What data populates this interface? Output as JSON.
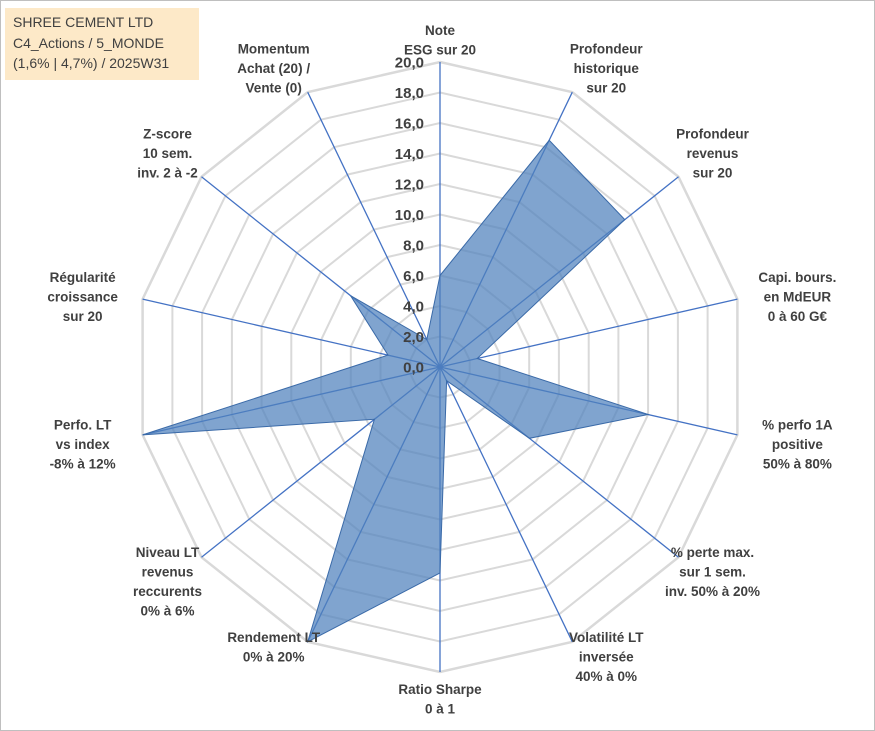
{
  "title_box": {
    "line1": "SHREE CEMENT LTD",
    "line2": "C4_Actions / 5_MONDE",
    "line3": "(1,6% | 4,7%) / 2025W31"
  },
  "chart_data": {
    "type": "radar",
    "rmin": 0,
    "rmax": 20,
    "tick_step": 2,
    "tick_labels": [
      "0,0",
      "2,0",
      "4,0",
      "6,0",
      "8,0",
      "10,0",
      "12,0",
      "14,0",
      "16,0",
      "18,0",
      "20,0"
    ],
    "grid": true,
    "fill_color": "#4f81bd",
    "grid_color": "#d9d9d9",
    "axes": [
      {
        "label": [
          "Note",
          "ESG sur 20"
        ],
        "value": 6.0
      },
      {
        "label": [
          "Profondeur",
          "historique",
          "sur 20"
        ],
        "value": 16.5
      },
      {
        "label": [
          "Profondeur",
          "revenus",
          "sur 20"
        ],
        "value": 15.5
      },
      {
        "label": [
          "Capi. bours.",
          "en MdEUR",
          "0 à 60 G€"
        ],
        "value": 2.5
      },
      {
        "label": [
          "% perfo 1A",
          "positive",
          "50% à 80%"
        ],
        "value": 14.0
      },
      {
        "label": [
          "% perte max.",
          "sur 1 sem.",
          "inv. 50% à 20%"
        ],
        "value": 7.5
      },
      {
        "label": [
          "Volatilité LT",
          "inversée",
          "40% à 0%"
        ],
        "value": 1.0
      },
      {
        "label": [
          "Ratio Sharpe",
          "0 à 1"
        ],
        "value": 13.5
      },
      {
        "label": [
          "Rendement LT",
          "0% à 20%"
        ],
        "value": 20.0
      },
      {
        "label": [
          "Niveau LT",
          "revenus",
          "reccurents",
          "0% à 6%"
        ],
        "value": 5.5
      },
      {
        "label": [
          "Perfo. LT",
          "vs index",
          "-8% à 12%"
        ],
        "value": 20.0
      },
      {
        "label": [
          "Régularité",
          "croissance",
          "sur 20"
        ],
        "value": 3.5
      },
      {
        "label": [
          "Z-score",
          "10 sem.",
          "inv. 2 à -2"
        ],
        "value": 7.5
      },
      {
        "label": [
          "Momentum",
          "Achat (20) /",
          "Vente (0)"
        ],
        "value": 2.0
      }
    ]
  }
}
